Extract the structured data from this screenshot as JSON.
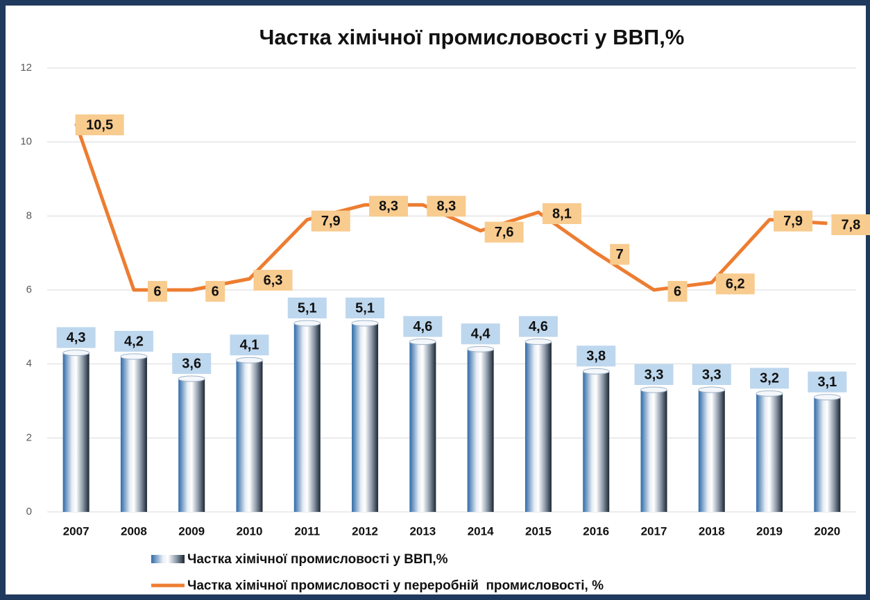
{
  "chart_data": {
    "type": "combo",
    "title": "Частка хімічної промисловості у ВВП,%",
    "categories": [
      "2007",
      "2008",
      "2009",
      "2010",
      "2011",
      "2012",
      "2013",
      "2014",
      "2015",
      "2016",
      "2017",
      "2018",
      "2019",
      "2020"
    ],
    "series": [
      {
        "name": "Частка хімічної промисловості у ВВП,%",
        "type": "bar",
        "color": "#2f6aa8",
        "values": [
          4.3,
          4.2,
          3.6,
          4.1,
          5.1,
          5.1,
          4.6,
          4.4,
          4.6,
          3.8,
          3.3,
          3.3,
          3.2,
          3.1
        ],
        "value_labels": [
          "4,3",
          "4,2",
          "3,6",
          "4,1",
          "5,1",
          "5,1",
          "4,6",
          "4,4",
          "4,6",
          "3,8",
          "3,3",
          "3,3",
          "3,2",
          "3,1"
        ]
      },
      {
        "name": "Частка хімічної промисловості у переробній  промисловості, %",
        "type": "line",
        "color": "#ed7d31",
        "values": [
          10.5,
          6,
          6,
          6.3,
          7.9,
          8.3,
          8.3,
          7.6,
          8.1,
          7,
          6,
          6.2,
          7.9,
          7.8
        ],
        "value_labels": [
          "10,5",
          "6",
          "6",
          "6,3",
          "7,9",
          "8,3",
          "8,3",
          "7,6",
          "8,1",
          "7",
          "6",
          "6,2",
          "7,9",
          "7,8"
        ]
      }
    ],
    "ylim": [
      0,
      12
    ],
    "yticks": [
      0,
      2,
      4,
      6,
      8,
      10,
      12
    ],
    "grid": true,
    "legend": "bottom"
  }
}
